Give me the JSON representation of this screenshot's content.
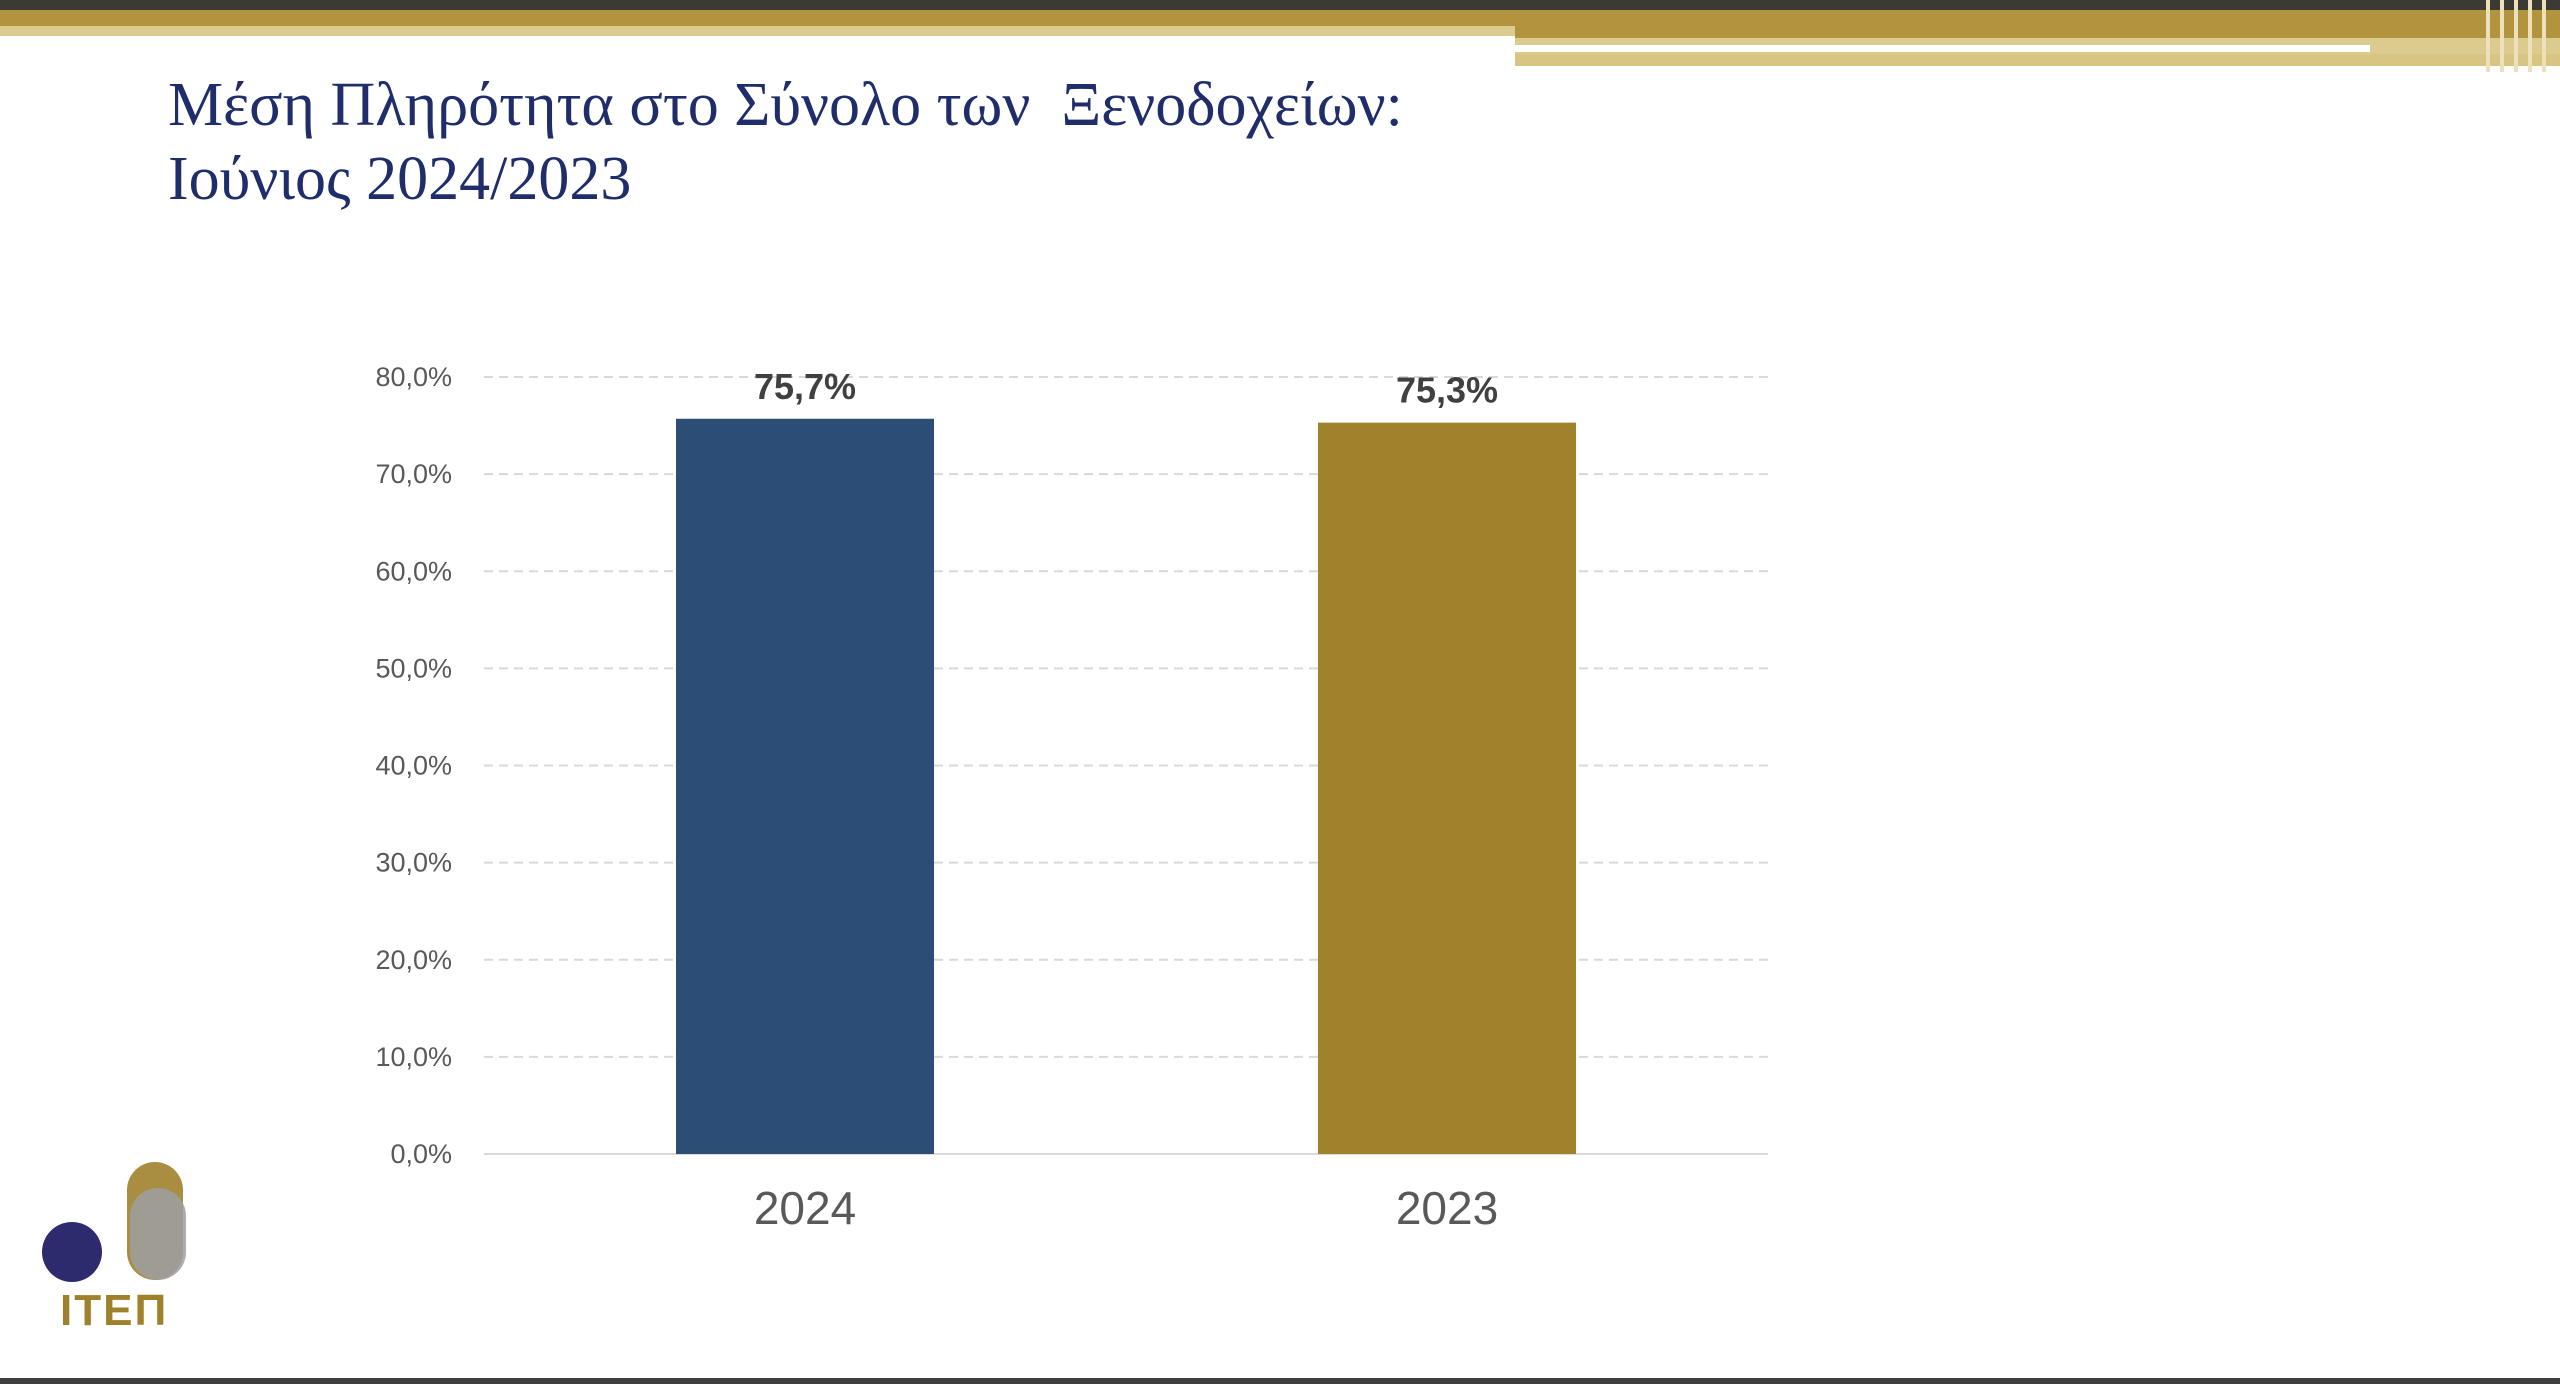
{
  "title": {
    "line1": "Μέση Πληρότητα στο Σύνολο των  Ξενοδοχείων:",
    "line2": "Ιούνιος 2024/2023"
  },
  "logo": {
    "text": "ΙΤΕΠ"
  },
  "colors": {
    "title": "#1f2d6b",
    "series_2024": "#2c4e76",
    "series_2023": "#a1822c",
    "logo_text": "#a0812b"
  },
  "chart_data": {
    "type": "bar",
    "categories": [
      "2024",
      "2023"
    ],
    "values": [
      75.7,
      75.3
    ],
    "data_labels": [
      "75,7%",
      "75,3%"
    ],
    "bar_colors": [
      "#2c4e76",
      "#a1822c"
    ],
    "y_ticks": [
      "0,0%",
      "10,0%",
      "20,0%",
      "30,0%",
      "40,0%",
      "50,0%",
      "60,0%",
      "70,0%",
      "80,0%"
    ],
    "ylim": [
      0,
      80
    ],
    "grid": true,
    "legend": "none",
    "xlabel": "",
    "ylabel": ""
  }
}
